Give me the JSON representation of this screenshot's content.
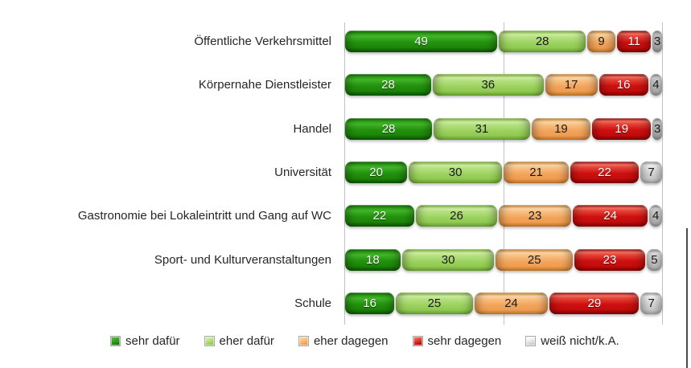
{
  "chart_data": {
    "type": "bar",
    "orientation": "horizontal",
    "stacked": true,
    "title": "",
    "xlabel": "",
    "ylabel": "",
    "xlim": [
      0,
      100
    ],
    "gridlines_percent": [
      0,
      50,
      100
    ],
    "grid_on": true,
    "legend_position": "bottom",
    "value_labels": true,
    "categories": [
      "Öffentliche Verkehrsmittel",
      "Körpernahe Dienstleister",
      "Handel",
      "Universität",
      "Gastronomie bei Lokaleintritt und Gang auf WC",
      "Sport- und Kulturveranstaltungen",
      "Schule"
    ],
    "series": [
      {
        "name": "sehr dafür",
        "color": "#23910e",
        "text_color": "#ffffff",
        "values": [
          49,
          28,
          28,
          20,
          22,
          18,
          16
        ]
      },
      {
        "name": "eher dafür",
        "color": "#9cd25f",
        "text_color": "#1a1a1a",
        "values": [
          28,
          36,
          31,
          30,
          26,
          30,
          25
        ]
      },
      {
        "name": "eher dagegen",
        "color": "#f2a45c",
        "text_color": "#1a1a1a",
        "values": [
          9,
          17,
          19,
          21,
          23,
          25,
          24
        ]
      },
      {
        "name": "sehr dagegen",
        "color": "#cd1010",
        "text_color": "#ffffff",
        "values": [
          11,
          16,
          19,
          22,
          24,
          23,
          29
        ]
      },
      {
        "name": "weiß nicht/k.A.",
        "color": "#d6d6d6",
        "text_color": "#1a1a1a",
        "values": [
          3,
          4,
          3,
          7,
          4,
          5,
          7
        ]
      }
    ],
    "colors": {
      "gridline": "#c2c2c2",
      "category_text": "#262626",
      "legend_text": "#262626",
      "page_edge_rule": "#4b4b4b",
      "background": "#ffffff"
    }
  }
}
